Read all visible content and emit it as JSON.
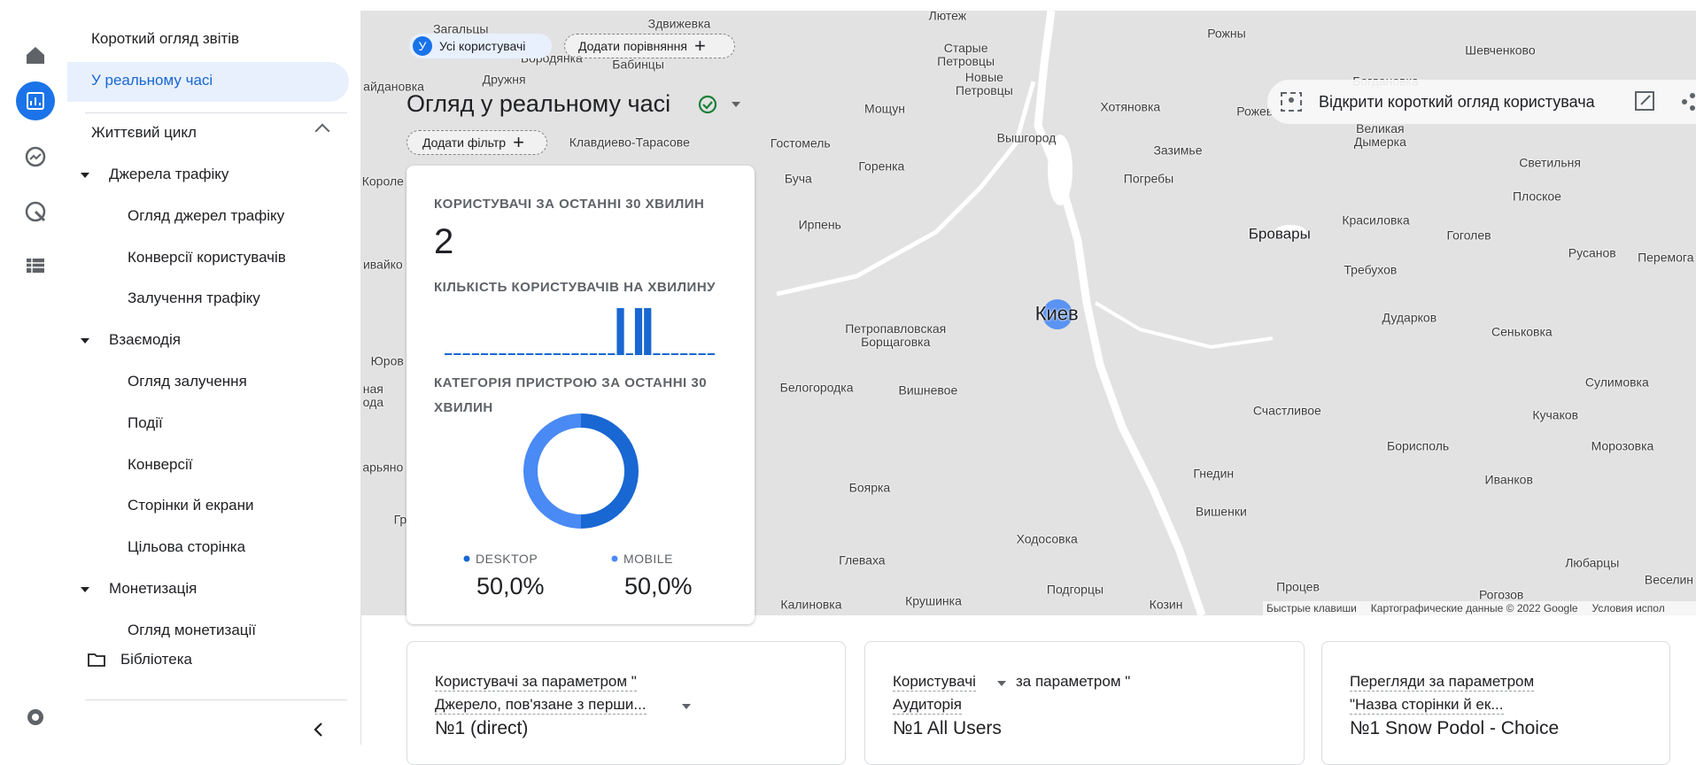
{
  "nav": {
    "overview": "Короткий огляд звітів",
    "realtime": "У реальному часі",
    "lifecycle": "Життєвий цикл",
    "groups": [
      {
        "name": "Джерела трафіку",
        "items": [
          "Огляд джерел трафіку",
          "Конверсії користувачів",
          "Залучення трафіку"
        ]
      },
      {
        "name": "Взаємодія",
        "items": [
          "Огляд залучення",
          "Події",
          "Конверсії",
          "Сторінки й екрани",
          "Цільова сторінка"
        ]
      },
      {
        "name": "Монетизація",
        "items": [
          "Огляд монетизації"
        ]
      }
    ],
    "library": "Бібліотека"
  },
  "header": {
    "segment_badge": "У",
    "segment": "Усі користувачі",
    "add_comparison": "Додати порівняння",
    "title": "Огляд у реальному часі",
    "add_filter": "Додати фільтр",
    "user_snapshot": "Відкрити короткий огляд користувача"
  },
  "map": {
    "labels": [
      "Загальцы",
      "Здвижевка",
      "Лютеж",
      "Рожны",
      "Шевченково",
      "Бородянка",
      "Бабинцы",
      "Старые\nПетровцы",
      "Новые\nПетровцы",
      "Богдановка",
      "айдановка",
      "Дружня",
      "Мощун",
      "Хотяновка",
      "Рожев",
      "Великая\nДымерка",
      "Светильня",
      "Клавдиево-Тарасове",
      "Гостомель",
      "Вышгород",
      "Зазимье",
      "Короле",
      "Буча",
      "Горенка",
      "Погребы",
      "Плоское",
      "Ирпень",
      "Бровары",
      "Красиловка",
      "Гоголев",
      "Русанов",
      "Перемога",
      "ивайко",
      "Требухов",
      "Киев",
      "Дударков",
      "Петропавловская\nБорщаговка",
      "Сеньковка",
      "Юров",
      "ная\nода",
      "Белогородка",
      "Вишневое",
      "Сулимовка",
      "Счастливое",
      "Кучаков",
      "Борисполь",
      "Морозовка",
      "арьяно",
      "Гнедин",
      "Иванков",
      "Боярка",
      "Вишенки",
      "Гр",
      "Ходосовка",
      "Глеваха",
      "Любарцы",
      "Веселин",
      "Процев",
      "Подгорцы",
      "Рогозов",
      "Калиновка",
      "Крушинка",
      "Козин"
    ],
    "attribution": [
      "Быстрые клавиши",
      "Картографические данные © 2022 Google",
      "Условия испол"
    ]
  },
  "realtime_card": {
    "users_title": "КОРИСТУВАЧІ ЗА ОСТАННІ 30 ХВИЛИН",
    "users_value": 2,
    "per_minute": {
      "title": "КІЛЬКІСТЬ КОРИСТУВАЧІВ НА ХВИЛИНУ",
      "chart_data": {
        "type": "bar",
        "color": "#1967d2",
        "values": [
          0,
          0,
          0,
          0,
          0,
          0,
          0,
          0,
          0,
          0,
          0,
          0,
          0,
          0,
          0,
          0,
          0,
          0,
          0,
          1,
          0,
          1,
          1,
          0,
          0,
          0,
          0,
          0,
          0,
          0
        ]
      }
    },
    "device": {
      "title": "КАТЕГОРІЯ ПРИСТРОЮ ЗА ОСТАННІ 30 ХВИЛИН",
      "chart_data": {
        "type": "pie",
        "categories": [
          "DESKTOP",
          "MOBILE"
        ],
        "values": [
          50,
          50
        ],
        "value_labels": [
          "50,0%",
          "50,0%"
        ],
        "colors": [
          "#1967d2",
          "#4a8af4"
        ]
      }
    }
  },
  "cards": [
    {
      "metric": "Користувачі за параметром \"",
      "dimension": "Джерело, пов'язане з перши...",
      "top": "№1  (direct)"
    },
    {
      "metric": "Користувачі",
      "param": "за параметром \"",
      "dimension": "Аудиторія",
      "top": "№1  All Users"
    },
    {
      "metric": "Перегляди за параметром",
      "dimension": "\"Назва сторінки й ек...",
      "top": "№1  Snow Podol - Choice"
    }
  ]
}
